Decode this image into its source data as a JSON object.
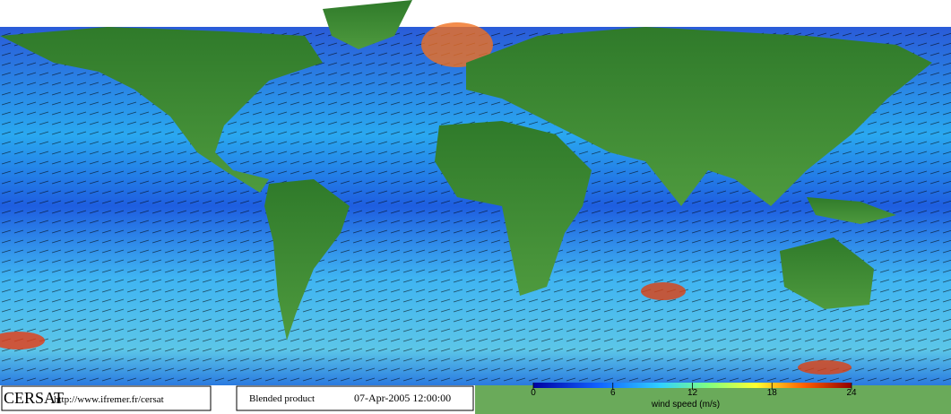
{
  "footer": {
    "logo": "CERSAT",
    "url": "http://www.ifremer.fr/cersat",
    "product": "Blended product",
    "datetime": "07-Apr-2005 12:00:00"
  },
  "colorbar": {
    "lim": [
      0,
      24
    ],
    "ticks": [
      0,
      6,
      12,
      18,
      24
    ],
    "label": "wind speed (m/s)"
  }
}
